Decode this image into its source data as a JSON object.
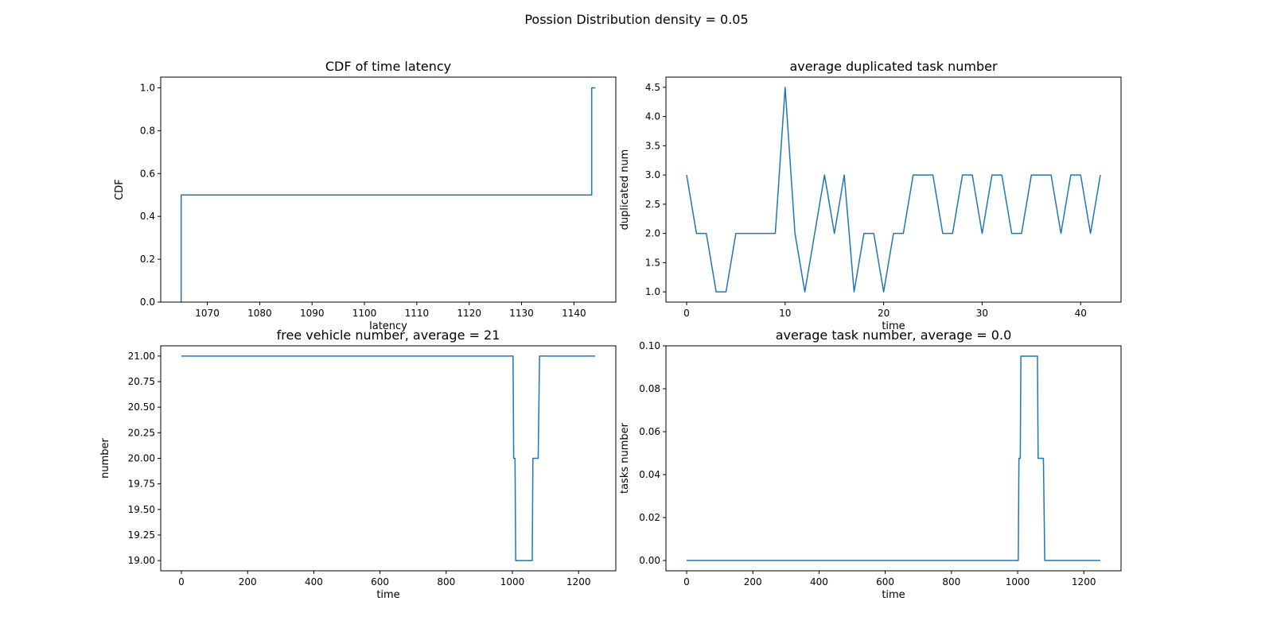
{
  "figure": {
    "suptitle": "Possion Distribution density = 0.05",
    "line_color": "#1f77b4"
  },
  "chart_data": [
    {
      "type": "line",
      "step": true,
      "title": "CDF of time latency",
      "xlabel": "latency",
      "ylabel": "CDF",
      "xlim": [
        1061.1,
        1148.0
      ],
      "ylim": [
        0.0,
        1.05
      ],
      "xticks": [
        1070,
        1080,
        1090,
        1100,
        1110,
        1120,
        1130,
        1140
      ],
      "xtick_labels": [
        "1070",
        "1080",
        "1090",
        "1100",
        "1110",
        "1120",
        "1130",
        "1140"
      ],
      "yticks": [
        0.0,
        0.2,
        0.4,
        0.6,
        0.8,
        1.0
      ],
      "ytick_labels": [
        "0.0",
        "0.2",
        "0.4",
        "0.6",
        "0.8",
        "1.0"
      ],
      "series": [
        {
          "x": [
            1065.0,
            1065.0,
            1143.4,
            1143.4,
            1144.1
          ],
          "y": [
            0.0,
            0.5,
            0.5,
            1.0,
            1.0
          ]
        }
      ]
    },
    {
      "type": "line",
      "title": "average duplicated task number",
      "xlabel": "time",
      "ylabel": "duplicated num",
      "xlim": [
        -2.1,
        44.1
      ],
      "ylim": [
        0.825,
        4.675
      ],
      "xticks": [
        0,
        10,
        20,
        30,
        40
      ],
      "xtick_labels": [
        "0",
        "10",
        "20",
        "30",
        "40"
      ],
      "yticks": [
        1.0,
        1.5,
        2.0,
        2.5,
        3.0,
        3.5,
        4.0,
        4.5
      ],
      "ytick_labels": [
        "1.0",
        "1.5",
        "2.0",
        "2.5",
        "3.0",
        "3.5",
        "4.0",
        "4.5"
      ],
      "series": [
        {
          "x": [
            0,
            1,
            2,
            3,
            4,
            5,
            6,
            7,
            8,
            9,
            10,
            11,
            12,
            13,
            14,
            15,
            16,
            17,
            18,
            19,
            20,
            21,
            22,
            23,
            24,
            25,
            26,
            27,
            28,
            29,
            30,
            31,
            32,
            33,
            34,
            35,
            36,
            37,
            38,
            39,
            40,
            41,
            42
          ],
          "y": [
            3,
            2,
            2,
            1,
            1,
            2,
            2,
            2,
            2,
            2,
            4.5,
            2,
            1,
            2,
            3,
            2,
            3,
            1,
            2,
            2,
            1,
            2,
            2,
            3,
            3,
            3,
            2,
            2,
            3,
            3,
            2,
            3,
            3,
            2,
            2,
            3,
            3,
            3,
            2,
            3,
            3,
            2,
            3
          ]
        }
      ]
    },
    {
      "type": "line",
      "title": "free vehicle number, average = 21",
      "xlabel": "time",
      "ylabel": "number",
      "xlim": [
        -62.5,
        1312.5
      ],
      "ylim": [
        18.9,
        21.1
      ],
      "xticks": [
        0,
        200,
        400,
        600,
        800,
        1000,
        1200
      ],
      "xtick_labels": [
        "0",
        "200",
        "400",
        "600",
        "800",
        "1000",
        "1200"
      ],
      "yticks": [
        19.0,
        19.25,
        19.5,
        19.75,
        20.0,
        20.25,
        20.5,
        20.75,
        21.0
      ],
      "ytick_labels": [
        "19.00",
        "19.25",
        "19.50",
        "19.75",
        "20.00",
        "20.25",
        "20.50",
        "20.75",
        "21.00"
      ],
      "series": [
        {
          "x": [
            0,
            1002,
            1004,
            1008,
            1010,
            1060,
            1062,
            1078,
            1082,
            1250
          ],
          "y": [
            21,
            21,
            20,
            20,
            19,
            19,
            20,
            20,
            21,
            21
          ]
        }
      ]
    },
    {
      "type": "line",
      "title": "average task number, average = 0.0",
      "xlabel": "time",
      "ylabel": "tasks number",
      "xlim": [
        -62.5,
        1312.5
      ],
      "ylim": [
        -0.0048,
        0.1
      ],
      "xticks": [
        0,
        200,
        400,
        600,
        800,
        1000,
        1200
      ],
      "xtick_labels": [
        "0",
        "200",
        "400",
        "600",
        "800",
        "1000",
        "1200"
      ],
      "yticks": [
        0.0,
        0.02,
        0.04,
        0.06,
        0.08,
        0.1
      ],
      "ytick_labels": [
        "0.00",
        "0.02",
        "0.04",
        "0.06",
        "0.08",
        "0.10"
      ],
      "series": [
        {
          "x": [
            0,
            1002,
            1004,
            1008,
            1010,
            1060,
            1062,
            1078,
            1082,
            1250
          ],
          "y": [
            0,
            0,
            0.0476,
            0.0476,
            0.0952,
            0.0952,
            0.0476,
            0.0476,
            0,
            0
          ]
        }
      ]
    }
  ]
}
